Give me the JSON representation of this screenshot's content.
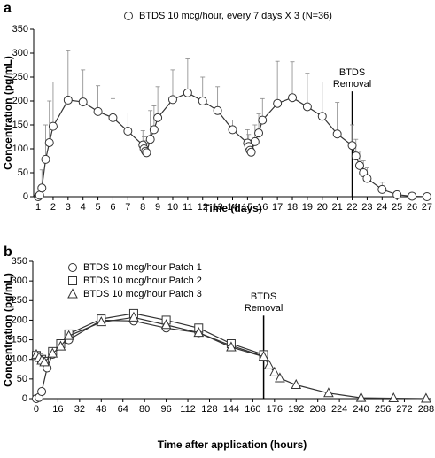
{
  "chart_data": [
    {
      "type": "line",
      "panel_label": "a",
      "xlabel": "Time (days)",
      "ylabel": "Concentration (pg/mL)",
      "xlim": [
        0.7,
        27.3
      ],
      "xticks": [
        1,
        2,
        3,
        4,
        5,
        6,
        7,
        8,
        9,
        10,
        11,
        12,
        13,
        14,
        15,
        16,
        17,
        18,
        19,
        20,
        21,
        22,
        23,
        24,
        25,
        26,
        27
      ],
      "ylim": [
        0,
        350
      ],
      "yticks": [
        0,
        50,
        100,
        150,
        200,
        250,
        300,
        350
      ],
      "grid": false,
      "legend": "top",
      "annotation": {
        "text": [
          "BTDS",
          "Removal"
        ],
        "x": 22
      },
      "series": [
        {
          "name": "BTDS 10 mcg/hour, every 7 days X 3 (N=36)",
          "color": "#333333",
          "marker": "circle",
          "x": [
            1,
            1.1,
            1.25,
            1.5,
            1.75,
            2,
            3,
            4,
            5,
            6,
            7,
            8,
            8.08,
            8.17,
            8.25,
            8.5,
            8.75,
            9,
            10,
            11,
            12,
            13,
            14,
            15,
            15.08,
            15.17,
            15.25,
            15.5,
            15.75,
            16,
            17,
            18,
            19,
            20,
            21,
            22,
            22.25,
            22.5,
            22.75,
            23,
            24,
            25,
            26,
            27
          ],
          "values": [
            0,
            3,
            18,
            78,
            113,
            147,
            202,
            198,
            178,
            165,
            137,
            108,
            100,
            95,
            92,
            120,
            140,
            165,
            203,
            217,
            200,
            180,
            140,
            112,
            105,
            97,
            93,
            115,
            133,
            160,
            195,
            207,
            188,
            168,
            131,
            107,
            85,
            65,
            50,
            38,
            15,
            4,
            1,
            0
          ],
          "errors": [
            null,
            8,
            38,
            72,
            87,
            93,
            103,
            67,
            54,
            40,
            38,
            30,
            25,
            22,
            20,
            60,
            50,
            65,
            62,
            71,
            50,
            50,
            20,
            28,
            25,
            22,
            20,
            35,
            40,
            45,
            88,
            75,
            70,
            72,
            66,
            43,
            35,
            30,
            25,
            22,
            15,
            6,
            null,
            null
          ]
        }
      ]
    },
    {
      "type": "line",
      "panel_label": "b",
      "xlabel": "Time after application (hours)",
      "ylabel": "Concentration (pg/mL)",
      "xlim": [
        -2.6,
        292
      ],
      "xticks": [
        0,
        16,
        32,
        48,
        64,
        80,
        96,
        112,
        128,
        144,
        160,
        176,
        192,
        208,
        224,
        240,
        256,
        272,
        288
      ],
      "ylim": [
        0,
        350
      ],
      "yticks": [
        0,
        50,
        100,
        150,
        200,
        250,
        300,
        350
      ],
      "grid": false,
      "legend": "upper left",
      "annotation": {
        "text": [
          "BTDS",
          "Removal"
        ],
        "x": 168
      },
      "series": [
        {
          "name": "BTDS 10 mcg/hour Patch 1",
          "color": "#333333",
          "marker": "circle",
          "x": [
            0,
            2,
            4,
            8,
            12,
            24,
            48,
            72,
            96,
            120,
            144,
            168
          ],
          "values": [
            0,
            3,
            18,
            78,
            113,
            150,
            200,
            198,
            180,
            168,
            135,
            108
          ]
        },
        {
          "name": "BTDS 10 mcg/hour Patch 2",
          "color": "#333333",
          "marker": "square",
          "x": [
            0,
            2,
            4,
            6,
            12,
            18,
            24,
            48,
            72,
            96,
            120,
            144,
            168
          ],
          "values": [
            110,
            105,
            100,
            95,
            120,
            140,
            165,
            203,
            217,
            200,
            180,
            140,
            112
          ]
        },
        {
          "name": "BTDS 10 mcg/hour Patch 3",
          "color": "#333333",
          "marker": "triangle",
          "x": [
            0,
            2,
            4,
            6,
            12,
            18,
            24,
            48,
            72,
            96,
            120,
            144,
            168,
            172,
            176,
            180,
            192,
            216,
            240,
            264,
            288
          ],
          "values": [
            112,
            105,
            97,
            93,
            115,
            133,
            160,
            195,
            207,
            188,
            168,
            131,
            107,
            85,
            67,
            52,
            35,
            14,
            2,
            1,
            0
          ]
        }
      ]
    }
  ]
}
